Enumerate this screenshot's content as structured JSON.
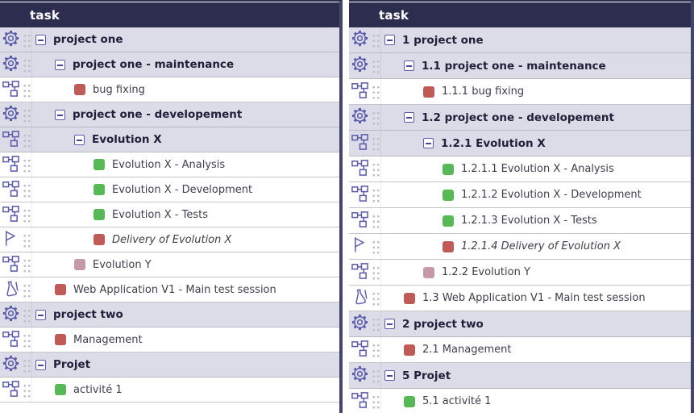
{
  "colors": {
    "header_bg": "#2d2d4f",
    "panel_border": "#44446c",
    "group_row_bg": "#dcdce8",
    "leaf_row_bg": "#ffffff",
    "row_border": "#c4c4cc",
    "icon_stroke": "#5c5cab",
    "handle_dot": "#bcbcc6",
    "group_text": "#20203a",
    "leaf_text": "#3e3e4c",
    "status": {
      "red": "#c05a57",
      "green": "#57b956",
      "mauve": "#c59aa5"
    }
  },
  "panels": [
    {
      "id": "left",
      "header": "task",
      "show_wbs": false
    },
    {
      "id": "right",
      "header": "task",
      "show_wbs": true
    }
  ],
  "tasks": [
    {
      "wbs": "1",
      "label": "project one",
      "level": 0,
      "type": "group",
      "icon": "gear",
      "status": null,
      "italic": false
    },
    {
      "wbs": "1.1",
      "label": "project one - maintenance",
      "level": 1,
      "type": "group",
      "icon": "gear",
      "status": null,
      "italic": false
    },
    {
      "wbs": "1.1.1",
      "label": "bug fixing",
      "level": 2,
      "type": "leaf",
      "icon": "hierarchy",
      "status": "red",
      "italic": false
    },
    {
      "wbs": "1.2",
      "label": "project one - developement",
      "level": 1,
      "type": "group",
      "icon": "gear",
      "status": null,
      "italic": false
    },
    {
      "wbs": "1.2.1",
      "label": "Evolution X",
      "level": 2,
      "type": "group",
      "icon": "hierarchy",
      "status": null,
      "italic": false
    },
    {
      "wbs": "1.2.1.1",
      "label": "Evolution X - Analysis",
      "level": 3,
      "type": "leaf",
      "icon": "hierarchy",
      "status": "green",
      "italic": false
    },
    {
      "wbs": "1.2.1.2",
      "label": "Evolution X - Development",
      "level": 3,
      "type": "leaf",
      "icon": "hierarchy",
      "status": "green",
      "italic": false
    },
    {
      "wbs": "1.2.1.3",
      "label": "Evolution X - Tests",
      "level": 3,
      "type": "leaf",
      "icon": "hierarchy",
      "status": "green",
      "italic": false
    },
    {
      "wbs": "1.2.1.4",
      "label": "Delivery of Evolution X",
      "level": 3,
      "type": "leaf",
      "icon": "flag",
      "status": "red",
      "italic": true
    },
    {
      "wbs": "1.2.2",
      "label": "Evolution Y",
      "level": 2,
      "type": "leaf",
      "icon": "hierarchy",
      "status": "mauve",
      "italic": false
    },
    {
      "wbs": "1.3",
      "label": "Web Application V1 - Main test session",
      "level": 1,
      "type": "leaf",
      "icon": "flask",
      "status": "red",
      "italic": false
    },
    {
      "wbs": "2",
      "label": "project two",
      "level": 0,
      "type": "group",
      "icon": "gear",
      "status": null,
      "italic": false
    },
    {
      "wbs": "2.1",
      "label": "Management",
      "level": 1,
      "type": "leaf",
      "icon": "hierarchy",
      "status": "red",
      "italic": false
    },
    {
      "wbs": "5",
      "label": "Projet",
      "level": 0,
      "type": "group",
      "icon": "gear",
      "status": null,
      "italic": false
    },
    {
      "wbs": "5.1",
      "label": "activité 1",
      "level": 1,
      "type": "leaf",
      "icon": "hierarchy",
      "status": "green",
      "italic": false
    }
  ]
}
